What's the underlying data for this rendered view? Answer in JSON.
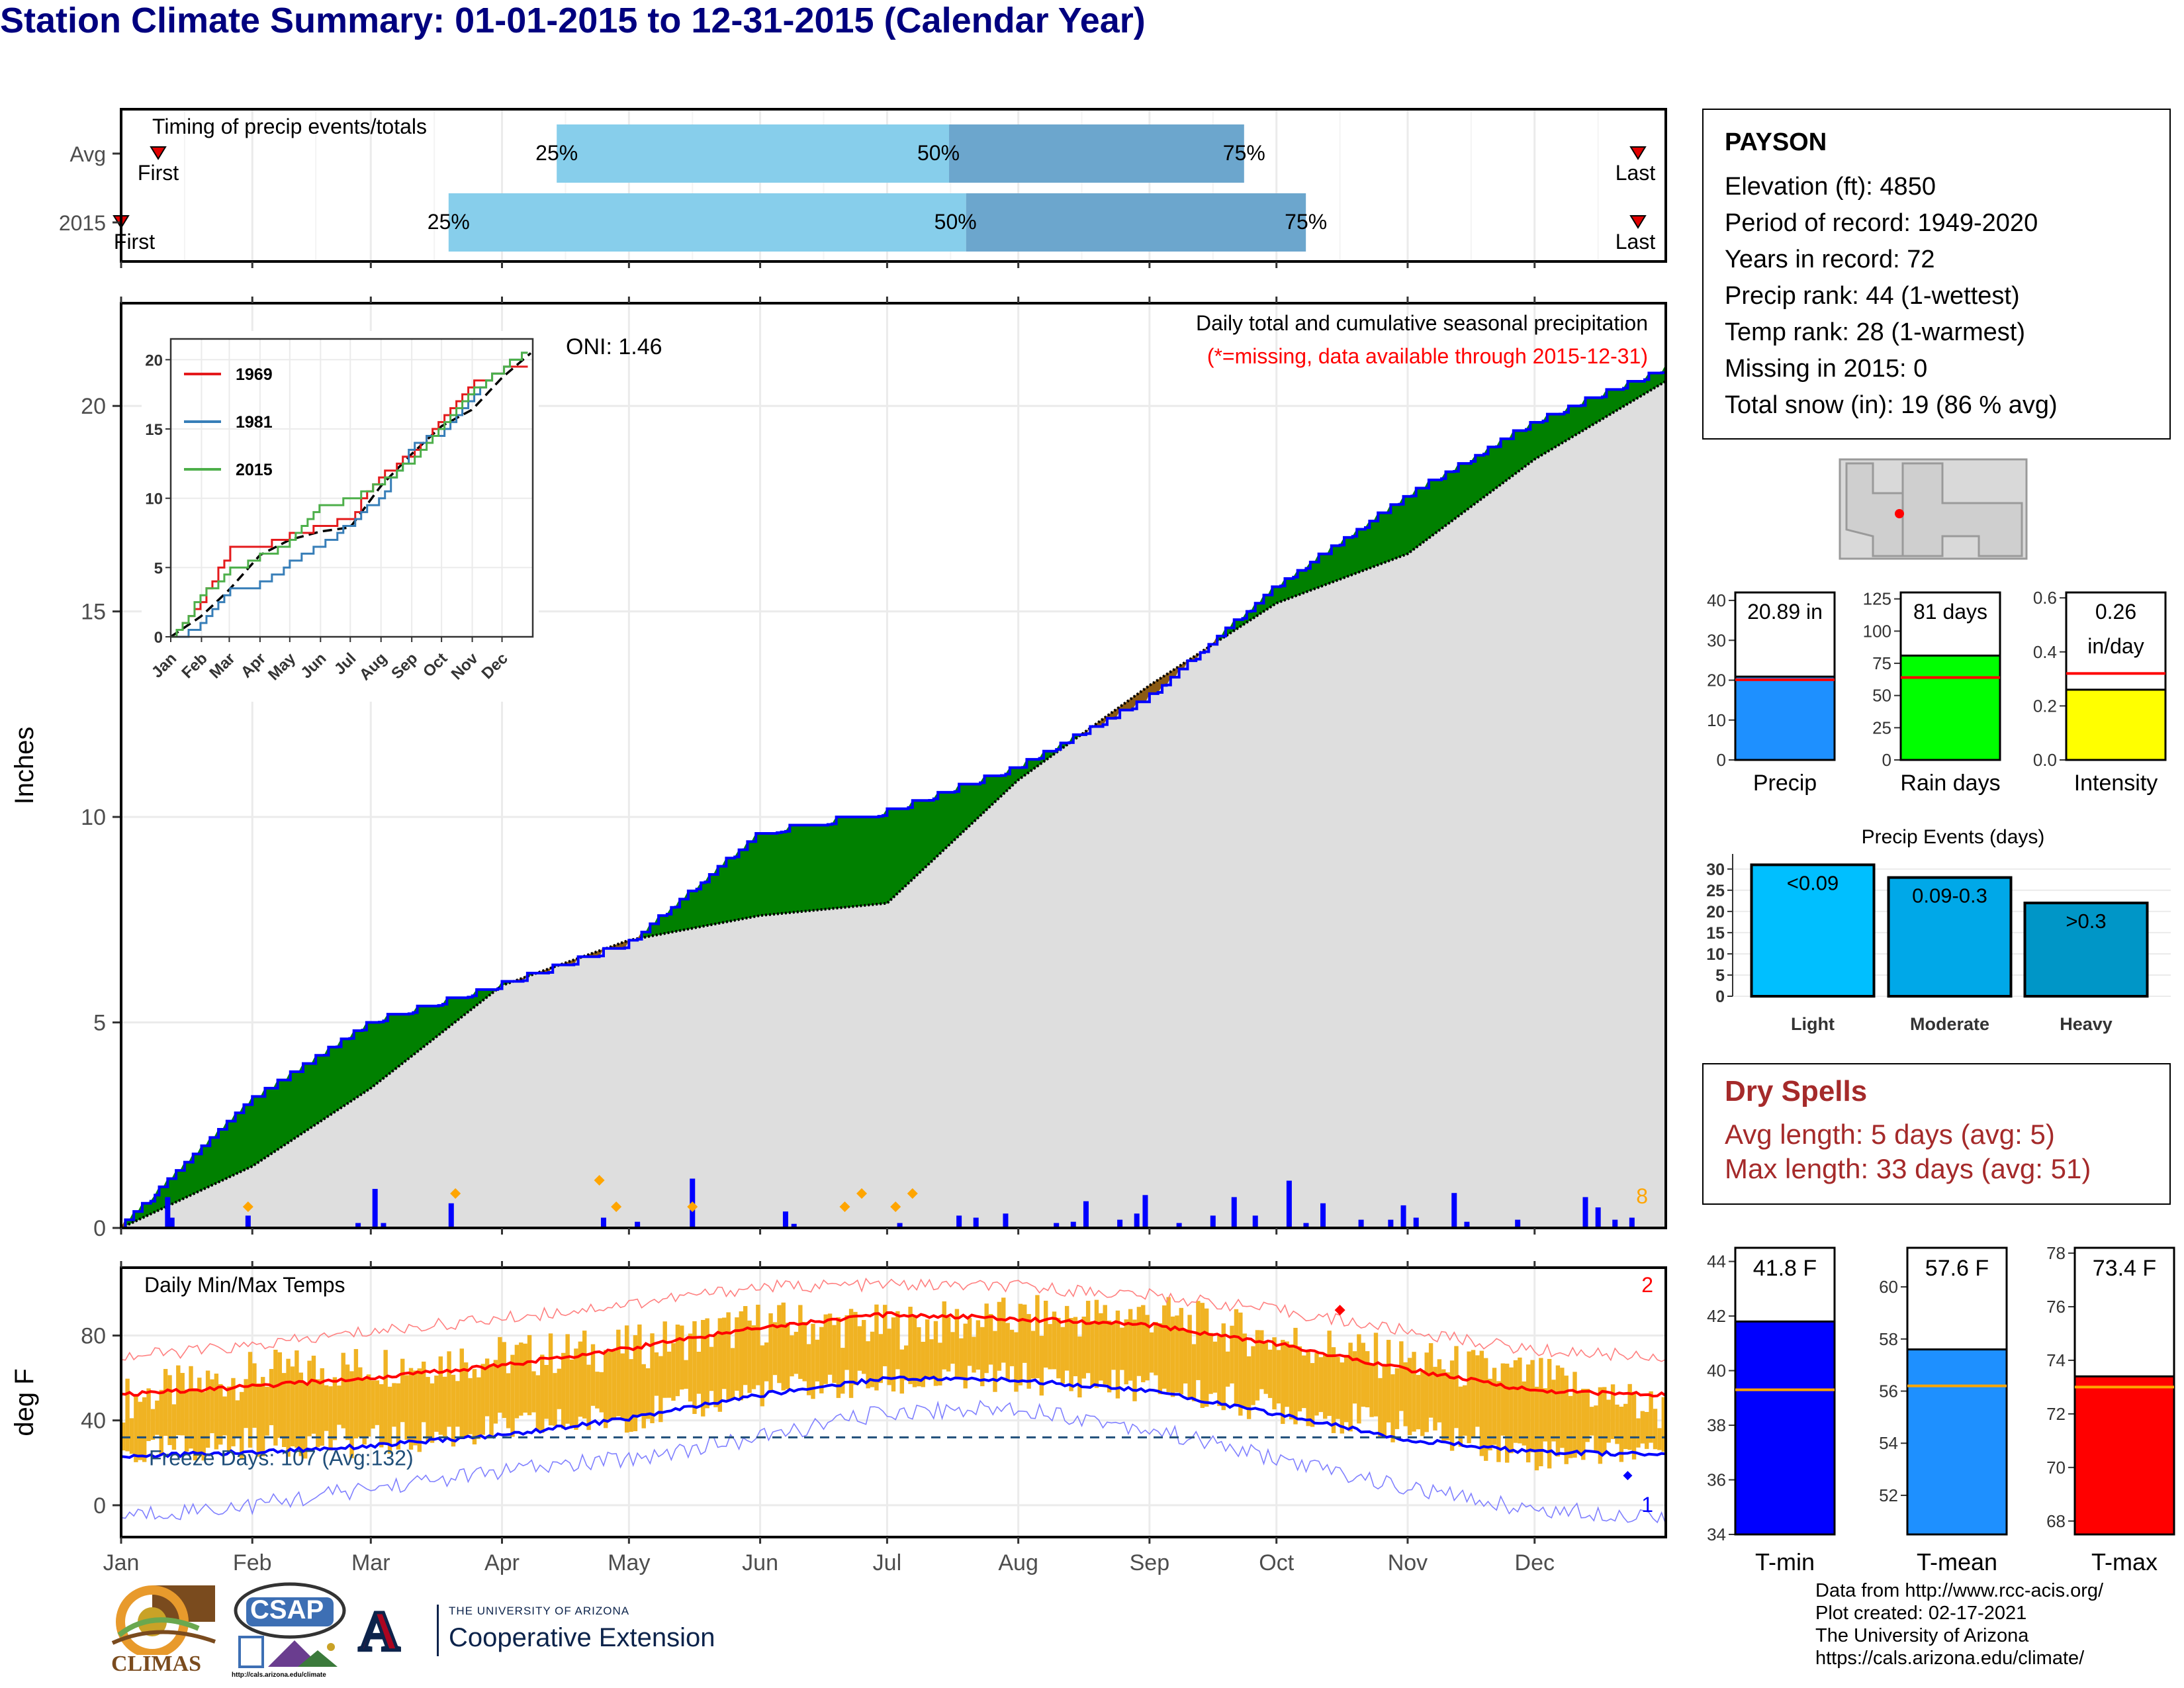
{
  "title": "Station Climate Summary: 01-01-2015 to 12-31-2015 (Calendar Year)",
  "timing_panel": {
    "label": "Timing of precip events/totals",
    "rows": [
      {
        "name": "Avg",
        "first": "First",
        "last": "Last",
        "q25": 0.282,
        "q50": 0.536,
        "q75": 0.727,
        "first_pos": 0.024,
        "last_pos": 0.982
      },
      {
        "name": "2015",
        "first": "First",
        "last": "Last",
        "q25": 0.212,
        "q50": 0.547,
        "q75": 0.767,
        "first_pos": 0.0,
        "last_pos": 0.982
      }
    ],
    "pct_labels": [
      "25%",
      "50%",
      "75%"
    ]
  },
  "precip_panel": {
    "ylabel": "Inches",
    "title_line1": "Daily total and cumulative seasonal precipitation",
    "title_line2": "(*=missing, data available through 2015-12-31)",
    "oni": "ONI: 1.46",
    "corner_count": "8",
    "yticks": [
      0,
      5,
      10,
      15,
      20
    ],
    "ylim": [
      0,
      22.5
    ]
  },
  "inset": {
    "yticks": [
      0,
      5,
      10,
      15,
      20
    ],
    "legend": [
      "1969",
      "1981",
      "2015"
    ],
    "colors": [
      "#e41a1c",
      "#377eb8",
      "#4daf4a"
    ],
    "months": [
      "Jan",
      "Feb",
      "Mar",
      "Apr",
      "May",
      "Jun",
      "Jul",
      "Aug",
      "Sep",
      "Oct",
      "Nov",
      "Dec"
    ]
  },
  "temp_panel": {
    "ylabel": "deg F",
    "title": "Daily Min/Max Temps",
    "freeze": "Freeze Days: 107 (Avg:132)",
    "corner_top": "2",
    "corner_bottom": "1",
    "yticks": [
      0,
      40,
      80
    ],
    "ylim": [
      -15,
      112
    ]
  },
  "months": [
    "Jan",
    "Feb",
    "Mar",
    "Apr",
    "May",
    "Jun",
    "Jul",
    "Aug",
    "Sep",
    "Oct",
    "Nov",
    "Dec"
  ],
  "station": {
    "name": "PAYSON",
    "lines": [
      "Elevation (ft): 4850",
      "Period of record: 1949-2020",
      "Years in record: 72",
      "Precip rank: 44 (1-wettest)",
      "Temp rank: 28 (1-warmest)",
      "Missing in 2015: 0",
      "Total snow (in): 19 (86 % avg)"
    ]
  },
  "mini_bars": [
    {
      "label": "Precip",
      "value_text": "20.89 in",
      "value": 20.89,
      "avg": 20.1,
      "ylim": [
        0,
        42
      ],
      "yticks": [
        0,
        10,
        20,
        30,
        40
      ],
      "color": "#1e90ff",
      "avgcolor": "#ff0000"
    },
    {
      "label": "Rain days",
      "value_text": "81 days",
      "value": 81,
      "avg": 64,
      "ylim": [
        0,
        130
      ],
      "yticks": [
        0,
        25,
        50,
        75,
        100,
        125
      ],
      "color": "#00ff00",
      "avgcolor": "#ff0000"
    },
    {
      "label": "Intensity",
      "value_text": "0.26",
      "value_text2": "in/day",
      "value": 0.26,
      "avg": 0.32,
      "ylim": [
        0,
        0.62
      ],
      "yticks": [
        0.0,
        0.2,
        0.4,
        0.6
      ],
      "color": "#ffff00",
      "avgcolor": "#ff0000"
    }
  ],
  "precip_events": {
    "title": "Precip Events (days)",
    "categories": [
      "Light",
      "Moderate",
      "Heavy"
    ],
    "values": [
      31,
      28,
      22
    ],
    "bar_labels": [
      "<0.09",
      "0.09-0.3",
      ">0.3"
    ],
    "colors": [
      "#00bfff",
      "#00a8e8",
      "#0096c7"
    ],
    "yticks": [
      0,
      5,
      10,
      15,
      20,
      25,
      30
    ],
    "ylim": [
      0,
      32
    ]
  },
  "dry_spells": {
    "title": "Dry Spells",
    "avg": "Avg length: 5 days (avg: 5)",
    "max": "Max length: 33 days (avg: 51)"
  },
  "temp_bars": [
    {
      "label": "T-min",
      "value_text": "41.8 F",
      "value": 41.8,
      "avg": 39.3,
      "ylim": [
        34,
        44.5
      ],
      "yticks": [
        34,
        36,
        38,
        40,
        42,
        44
      ],
      "color": "#0000ff"
    },
    {
      "label": "T-mean",
      "value_text": "57.6 F",
      "value": 57.6,
      "avg": 56.2,
      "ylim": [
        50.5,
        61.5
      ],
      "yticks": [
        52,
        54,
        56,
        58,
        60
      ],
      "color": "#1e90ff"
    },
    {
      "label": "T-max",
      "value_text": "73.4 F",
      "value": 73.4,
      "avg": 73.0,
      "ylim": [
        67.5,
        78.2
      ],
      "yticks": [
        68,
        70,
        72,
        74,
        76,
        78
      ],
      "color": "#ff0000"
    }
  ],
  "credits": [
    "Data from http://www.rcc-acis.org/",
    "Plot created: 02-17-2021",
    "The University of Arizona",
    "https://cals.arizona.edu/climate/"
  ],
  "logos": {
    "climas": "CLIMAS",
    "csap": "CSAP",
    "csap_url": "http://cals.arizona.edu/climate",
    "ua_line1": "THE UNIVERSITY OF ARIZONA",
    "ua_line2": "Cooperative Extension",
    "ua_letter": "A"
  },
  "chart_data": [
    {
      "type": "bar",
      "title": "Timing of precip events/totals",
      "categories": [
        "Avg",
        "2015"
      ],
      "series": [
        {
          "name": "25%",
          "values": [
            0.282,
            0.212
          ]
        },
        {
          "name": "50%",
          "values": [
            0.536,
            0.547
          ]
        },
        {
          "name": "75%",
          "values": [
            0.727,
            0.767
          ]
        }
      ]
    },
    {
      "type": "area",
      "title": "Daily total and cumulative seasonal precipitation",
      "ylabel": "Inches",
      "ylim": [
        0,
        22.5
      ],
      "x": [
        0,
        31,
        59,
        90,
        120,
        151,
        181,
        212,
        243,
        273,
        304,
        334,
        365
      ],
      "series": [
        {
          "name": "Avg",
          "values": [
            0,
            1.5,
            3.4,
            5.9,
            7.0,
            7.6,
            7.9,
            10.9,
            13.2,
            15.2,
            16.4,
            18.7,
            20.6
          ]
        },
        {
          "name": "2015",
          "values": [
            0.1,
            3.2,
            5.1,
            6.0,
            7.0,
            9.7,
            10.2,
            11.3,
            13.0,
            15.7,
            17.9,
            19.7,
            21.0
          ]
        }
      ],
      "daily_bars": [
        {
          "day": 11,
          "value": 0.75
        },
        {
          "day": 12,
          "value": 0.25
        },
        {
          "day": 30,
          "value": 0.3
        },
        {
          "day": 56,
          "value": 0.12
        },
        {
          "day": 60,
          "value": 0.95
        },
        {
          "day": 62,
          "value": 0.12
        },
        {
          "day": 78,
          "value": 0.6
        },
        {
          "day": 114,
          "value": 0.25
        },
        {
          "day": 122,
          "value": 0.15
        },
        {
          "day": 135,
          "value": 1.2
        },
        {
          "day": 157,
          "value": 0.4
        },
        {
          "day": 159,
          "value": 0.1
        },
        {
          "day": 184,
          "value": 0.12
        },
        {
          "day": 198,
          "value": 0.3
        },
        {
          "day": 202,
          "value": 0.25
        },
        {
          "day": 209,
          "value": 0.35
        },
        {
          "day": 221,
          "value": 0.12
        },
        {
          "day": 225,
          "value": 0.15
        },
        {
          "day": 228,
          "value": 0.65
        },
        {
          "day": 236,
          "value": 0.2
        },
        {
          "day": 240,
          "value": 0.35
        },
        {
          "day": 242,
          "value": 0.8
        },
        {
          "day": 250,
          "value": 0.12
        },
        {
          "day": 258,
          "value": 0.3
        },
        {
          "day": 263,
          "value": 0.75
        },
        {
          "day": 268,
          "value": 0.3
        },
        {
          "day": 276,
          "value": 1.15
        },
        {
          "day": 280,
          "value": 0.12
        },
        {
          "day": 284,
          "value": 0.6
        },
        {
          "day": 293,
          "value": 0.2
        },
        {
          "day": 300,
          "value": 0.2
        },
        {
          "day": 303,
          "value": 0.55
        },
        {
          "day": 306,
          "value": 0.25
        },
        {
          "day": 315,
          "value": 0.85
        },
        {
          "day": 318,
          "value": 0.15
        },
        {
          "day": 330,
          "value": 0.2
        },
        {
          "day": 346,
          "value": 0.75
        },
        {
          "day": 349,
          "value": 0.5
        },
        {
          "day": 353,
          "value": 0.2
        },
        {
          "day": 357,
          "value": 0.25
        }
      ],
      "snow_days": [
        30,
        79,
        113,
        117,
        135,
        171,
        175,
        183,
        187
      ]
    },
    {
      "type": "line",
      "title": "inset cumulative precipitation",
      "ylim": [
        0,
        21.5
      ],
      "x": [
        0,
        31,
        59,
        90,
        120,
        151,
        181,
        212,
        243,
        273,
        304,
        334,
        365
      ],
      "series": [
        {
          "name": "1969",
          "values": [
            0,
            3.0,
            6.5,
            6.8,
            7.5,
            8.2,
            9.0,
            12.0,
            13.5,
            16.0,
            18.5,
            19.5,
            20.0
          ]
        },
        {
          "name": "1981",
          "values": [
            0,
            1.2,
            3.5,
            4.0,
            5.5,
            6.8,
            8.5,
            10.5,
            14.0,
            15.0,
            17.5,
            19.8,
            21.0
          ]
        },
        {
          "name": "2015",
          "values": [
            0.1,
            3.2,
            5.1,
            6.0,
            7.0,
            9.7,
            10.2,
            11.3,
            13.0,
            15.7,
            17.9,
            19.7,
            21.0
          ]
        }
      ]
    },
    {
      "type": "line",
      "title": "Daily Min/Max Temps",
      "ylabel": "deg F",
      "ylim": [
        -15,
        112
      ],
      "x": [
        0,
        31,
        59,
        90,
        120,
        151,
        181,
        212,
        243,
        273,
        304,
        334,
        365
      ],
      "series": [
        {
          "name": "Avg max",
          "values": [
            52,
            56,
            60,
            66,
            74,
            84,
            90,
            88,
            85,
            76,
            64,
            54,
            52
          ]
        },
        {
          "name": "Avg min",
          "values": [
            23,
            25,
            28,
            33,
            41,
            52,
            60,
            59,
            54,
            43,
            31,
            25,
            24
          ]
        },
        {
          "name": "Record high",
          "values": [
            70,
            75,
            82,
            88,
            95,
            103,
            104,
            103,
            99,
            92,
            82,
            73,
            70
          ]
        },
        {
          "name": "Record low",
          "values": [
            -5,
            0,
            8,
            16,
            22,
            32,
            44,
            46,
            36,
            22,
            8,
            -2,
            -5
          ]
        },
        {
          "name": "2015 max",
          "values": [
            50,
            62,
            66,
            70,
            74,
            86,
            84,
            88,
            90,
            78,
            68,
            60,
            44
          ]
        },
        {
          "name": "2015 min",
          "values": [
            24,
            30,
            30,
            36,
            42,
            54,
            58,
            60,
            56,
            46,
            36,
            24,
            28
          ]
        }
      ],
      "freeze_line": 32
    },
    {
      "type": "bar",
      "title": "Precip Events (days)",
      "categories": [
        "Light",
        "Moderate",
        "Heavy"
      ],
      "values": [
        31,
        28,
        22
      ]
    }
  ]
}
